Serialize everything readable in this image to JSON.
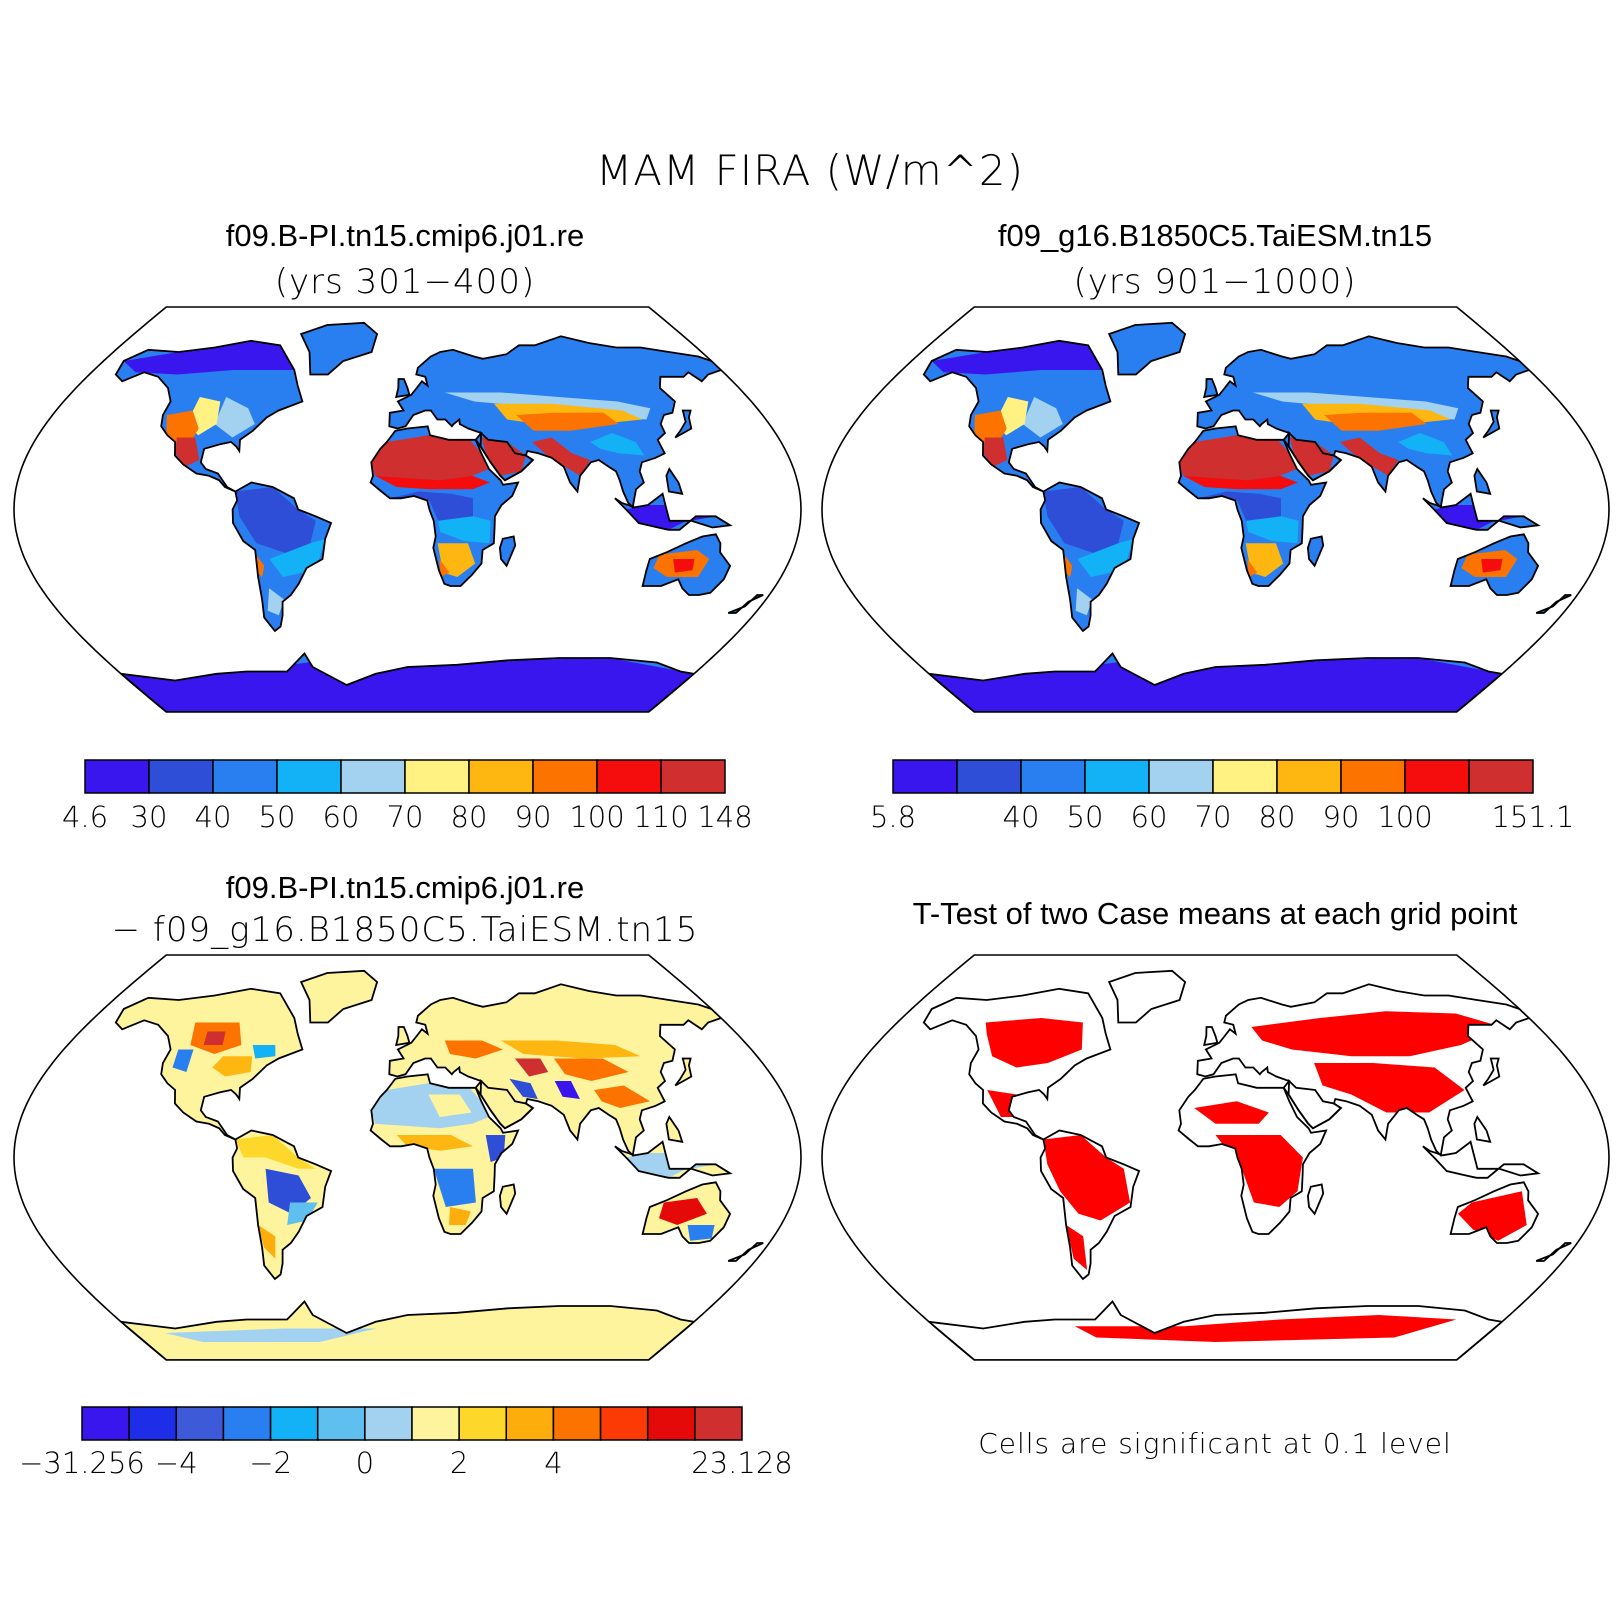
{
  "figure": {
    "title": "MAM FIRA (W/m^2)"
  },
  "panels": [
    {
      "id": "case1",
      "title": "f09.B-PI.tn15.cmip6.j01.re",
      "subtitle": "(yrs 301−400)"
    },
    {
      "id": "case2",
      "title": "f09_g16.B1850C5.TaiESM.tn15",
      "subtitle": "(yrs 901−1000)"
    },
    {
      "id": "diff",
      "title": "f09.B-PI.tn15.cmip6.j01.re",
      "subtitle": "− f09_g16.B1850C5.TaiESM.tn15"
    },
    {
      "id": "ttest",
      "title": "T-Test of two Case means at each grid point",
      "note": "Cells are significant at 0.1 level",
      "significant_color": "#ff0000"
    }
  ],
  "colorbars": [
    {
      "id": "cb1",
      "colors": [
        "#3a16ee",
        "#2e4ed8",
        "#2a7ff0",
        "#13b1f5",
        "#a2d2f0",
        "#fff283",
        "#fdb710",
        "#fc7300",
        "#f50c0c",
        "#cf2f2f"
      ],
      "labels": [
        "4.6",
        "30",
        "40",
        "50",
        "60",
        "70",
        "80",
        "90",
        "100",
        "110",
        "148"
      ]
    },
    {
      "id": "cb2",
      "colors": [
        "#3a16ee",
        "#2e4ed8",
        "#2a7ff0",
        "#13b1f5",
        "#a2d2f0",
        "#fff283",
        "#fdb710",
        "#fc7300",
        "#f50c0c",
        "#cf2f2f"
      ],
      "labels": [
        "5.8",
        "",
        "40",
        "50",
        "60",
        "70",
        "80",
        "90",
        "100",
        "",
        "151.1"
      ]
    },
    {
      "id": "cb3",
      "colors": [
        "#3a16ee",
        "#1e2ee8",
        "#3d5ad8",
        "#2a7ff0",
        "#13b1f5",
        "#5fc0ef",
        "#a2d2f0",
        "#fff49e",
        "#fdd72a",
        "#fdae0c",
        "#fc7300",
        "#fb3a06",
        "#e50a0a",
        "#cf2f2f"
      ],
      "labels": [
        "−31.256",
        "",
        "−4",
        "",
        "−2",
        "",
        "0",
        "",
        "2",
        "",
        "4",
        "",
        "",
        "",
        "23.128"
      ]
    }
  ]
}
